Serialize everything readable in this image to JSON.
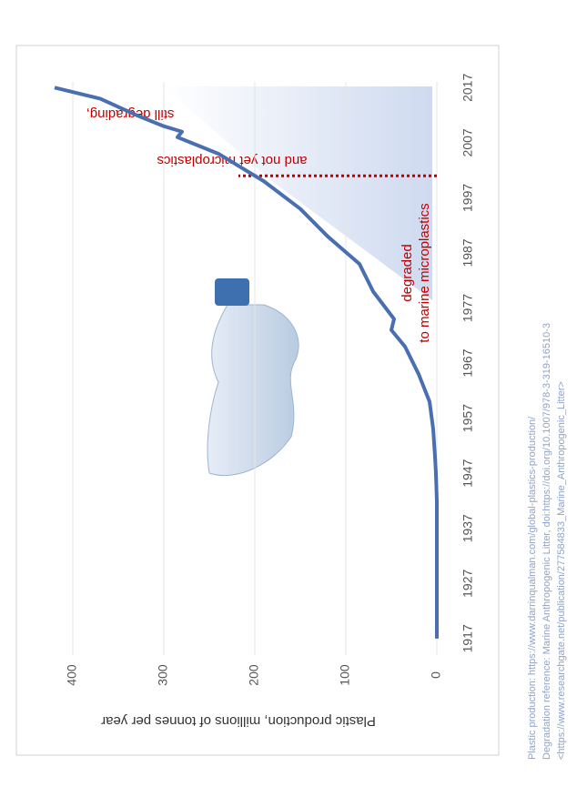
{
  "chart_data": {
    "type": "line",
    "y_label": "Plastic production, millions of tonnes per year",
    "x": [
      1917,
      1922,
      1927,
      1932,
      1937,
      1942,
      1947,
      1950,
      1955,
      1960,
      1965,
      1970,
      1973,
      1975,
      1980,
      1985,
      1990,
      1995,
      2000,
      2005,
      2007,
      2008,
      2009,
      2010,
      2012,
      2015,
      2017
    ],
    "series": [
      {
        "name": "Plastic production",
        "color": "#4a6fb0",
        "values": [
          0,
          0,
          0,
          0,
          0,
          0,
          1,
          2,
          4,
          8,
          20,
          35,
          50,
          47,
          70,
          85,
          120,
          150,
          190,
          240,
          270,
          285,
          280,
          300,
          330,
          370,
          420
        ]
      }
    ],
    "xlim": [
      1914,
      2023
    ],
    "xticks": [
      1917,
      1927,
      1937,
      1947,
      1957,
      1967,
      1977,
      1987,
      1997,
      2007,
      2017
    ],
    "ylim": [
      0,
      425
    ],
    "yticks": [
      0,
      100,
      200,
      300,
      400
    ],
    "grid": true,
    "divider": {
      "x": 2001,
      "value": 218,
      "color": "#c00000"
    },
    "annotations": [
      "degraded",
      "to marine microplastics",
      "still degrading,",
      "and not yet microplastics"
    ],
    "sources": [
      "Plastic production: https://www.darrinqualman.com/global-plastics-production/",
      "Degradation reference: Marine Anthropogenic Litter, doi:https://doi.org/10.1007/978-3-319-16510-3",
      "<https://www.researchgate.net/publication/277584833_Marine_Anthropogenic_Litter>"
    ]
  }
}
